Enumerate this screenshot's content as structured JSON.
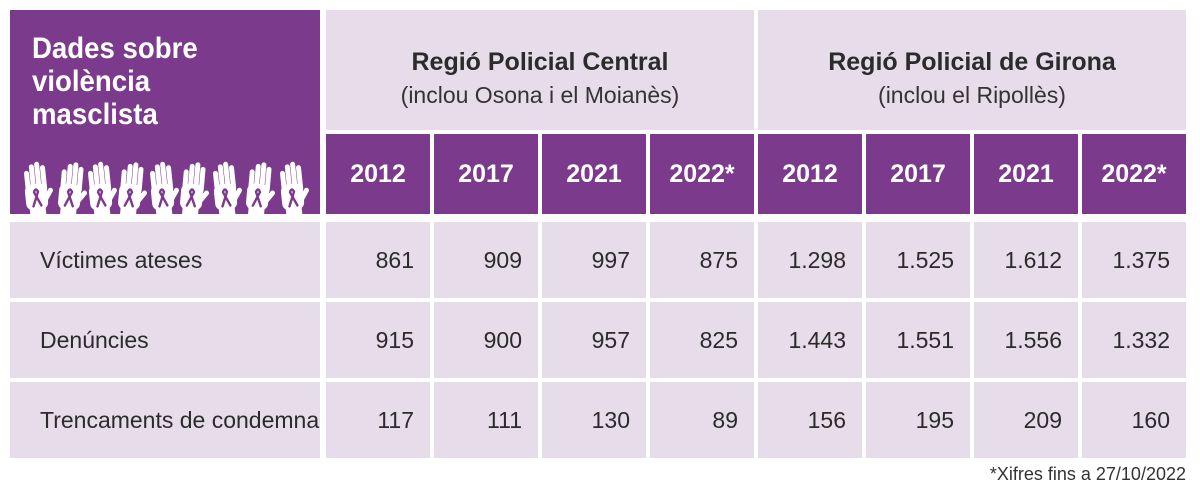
{
  "chart_data": {
    "type": "table",
    "title": "Dades sobre violència masclista",
    "title_lines": [
      "Dades sobre",
      "violència",
      "masclista"
    ],
    "regions": [
      {
        "name": "Regió Policial Central",
        "subtitle": "(inclou Osona i el Moianès)"
      },
      {
        "name": "Regió Policial de Girona",
        "subtitle": "(inclou el Ripollès)"
      }
    ],
    "years": [
      "2012",
      "2017",
      "2021",
      "2022*"
    ],
    "rows": [
      {
        "label": "Víctimes ateses",
        "values": [
          "861",
          "909",
          "997",
          "875",
          "1.298",
          "1.525",
          "1.612",
          "1.375"
        ]
      },
      {
        "label": "Denúncies",
        "values": [
          "915",
          "900",
          "957",
          "825",
          "1.443",
          "1.551",
          "1.556",
          "1.332"
        ]
      },
      {
        "label": "Trencaments de condemna",
        "values": [
          "117",
          "111",
          "130",
          "89",
          "156",
          "195",
          "209",
          "160"
        ]
      }
    ],
    "footnote": "*Xifres fins a 27/10/2022"
  },
  "colors": {
    "header_purple": "#7b3a8c",
    "cell_lavender": "#e6dcea",
    "text": "#2b2b2b"
  },
  "icons": {
    "decoration": "raised-hands-ribbon-icon"
  }
}
